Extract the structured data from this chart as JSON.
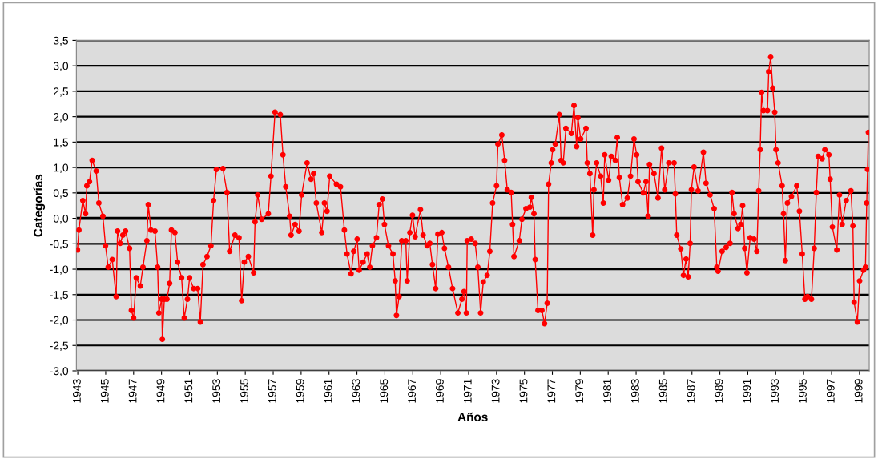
{
  "chart_data": {
    "type": "line",
    "xlabel": "Años",
    "ylabel": "Categorías",
    "xlim": [
      1942.9,
      1999.7
    ],
    "ylim": [
      -3.0,
      3.5
    ],
    "xticks": [
      1943,
      1945,
      1947,
      1949,
      1951,
      1953,
      1955,
      1957,
      1959,
      1961,
      1963,
      1965,
      1967,
      1969,
      1971,
      1973,
      1975,
      1977,
      1979,
      1981,
      1983,
      1985,
      1987,
      1989,
      1991,
      1993,
      1995,
      1997,
      1999
    ],
    "yticks": [
      {
        "value": -3.0,
        "label": "-3,0"
      },
      {
        "value": -2.5,
        "label": "-2,5"
      },
      {
        "value": -2.0,
        "label": "-2,0"
      },
      {
        "value": -1.5,
        "label": "-1,5"
      },
      {
        "value": -1.0,
        "label": "-1,0"
      },
      {
        "value": -0.5,
        "label": "-0,5"
      },
      {
        "value": 0.0,
        "label": "0,0"
      },
      {
        "value": 0.5,
        "label": "0,5"
      },
      {
        "value": 1.0,
        "label": "1,0"
      },
      {
        "value": 1.5,
        "label": "1,5"
      },
      {
        "value": 2.0,
        "label": "2,0"
      },
      {
        "value": 2.5,
        "label": "2,5"
      },
      {
        "value": 3.0,
        "label": "3,0"
      },
      {
        "value": 3.5,
        "label": "3,5"
      }
    ],
    "grid": "y",
    "marker": "circle",
    "line_style": "solid",
    "ref_lines": [
      {
        "axis": "y",
        "value": 0.0,
        "color": "#000000"
      }
    ],
    "series": [
      {
        "color": "#ff0000",
        "x": [
          1942.98,
          1943.08,
          1943.36,
          1943.56,
          1943.65,
          1943.84,
          1944.03,
          1944.32,
          1944.51,
          1944.8,
          1944.99,
          1945.18,
          1945.47,
          1945.75,
          1945.85,
          1946.04,
          1946.23,
          1946.42,
          1946.71,
          1946.84,
          1947.0,
          1947.19,
          1947.48,
          1947.67,
          1947.95,
          1948.05,
          1948.24,
          1948.53,
          1948.72,
          1948.81,
          1949.01,
          1949.06,
          1949.2,
          1949.39,
          1949.58,
          1949.71,
          1949.96,
          1950.15,
          1950.44,
          1950.63,
          1950.86,
          1951.01,
          1951.3,
          1951.59,
          1951.78,
          1951.97,
          1952.26,
          1952.54,
          1952.73,
          1952.93,
          1953.4,
          1953.69,
          1953.88,
          1954.26,
          1954.55,
          1954.74,
          1954.93,
          1955.22,
          1955.6,
          1955.7,
          1955.89,
          1956.18,
          1956.65,
          1956.84,
          1957.13,
          1957.51,
          1957.7,
          1957.9,
          1958.18,
          1958.28,
          1958.57,
          1958.85,
          1959.04,
          1959.43,
          1959.71,
          1959.9,
          1960.09,
          1960.48,
          1960.67,
          1960.86,
          1961.05,
          1961.53,
          1961.82,
          1962.1,
          1962.29,
          1962.58,
          1962.77,
          1963.02,
          1963.16,
          1963.44,
          1963.73,
          1963.92,
          1964.11,
          1964.4,
          1964.59,
          1964.82,
          1964.97,
          1965.26,
          1965.58,
          1965.74,
          1965.83,
          1966.02,
          1966.21,
          1966.5,
          1966.6,
          1966.79,
          1966.98,
          1967.17,
          1967.55,
          1967.74,
          1968.03,
          1968.22,
          1968.41,
          1968.64,
          1968.8,
          1969.08,
          1969.27,
          1969.56,
          1969.85,
          1970.23,
          1970.52,
          1970.67,
          1970.84,
          1970.9,
          1971.19,
          1971.47,
          1971.66,
          1971.86,
          1972.05,
          1972.33,
          1972.52,
          1972.72,
          1973.0,
          1973.1,
          1973.38,
          1973.58,
          1973.77,
          1974.05,
          1974.15,
          1974.25,
          1974.63,
          1974.82,
          1975.11,
          1975.39,
          1975.49,
          1975.68,
          1975.77,
          1975.97,
          1976.25,
          1976.44,
          1976.63,
          1976.73,
          1976.92,
          1977.02,
          1977.21,
          1977.5,
          1977.63,
          1977.78,
          1977.97,
          1978.36,
          1978.55,
          1978.74,
          1978.83,
          1979.03,
          1979.41,
          1979.5,
          1979.69,
          1979.89,
          1979.98,
          1980.17,
          1980.46,
          1980.65,
          1980.75,
          1981.03,
          1981.22,
          1981.51,
          1981.65,
          1981.8,
          1982.03,
          1982.37,
          1982.6,
          1982.85,
          1983.04,
          1983.14,
          1983.52,
          1983.71,
          1983.86,
          1983.96,
          1984.28,
          1984.57,
          1984.82,
          1985.05,
          1985.34,
          1985.72,
          1985.81,
          1985.91,
          1986.2,
          1986.39,
          1986.58,
          1986.73,
          1986.87,
          1986.96,
          1987.15,
          1987.44,
          1987.82,
          1988.01,
          1988.3,
          1988.59,
          1988.78,
          1988.87,
          1989.16,
          1989.45,
          1989.73,
          1989.87,
          1990.02,
          1990.3,
          1990.5,
          1990.63,
          1990.78,
          1990.94,
          1991.17,
          1991.45,
          1991.65,
          1991.78,
          1991.89,
          1991.99,
          1992.12,
          1992.41,
          1992.5,
          1992.64,
          1992.79,
          1992.93,
          1993.02,
          1993.17,
          1993.46,
          1993.56,
          1993.69,
          1993.84,
          1994.13,
          1994.51,
          1994.7,
          1994.9,
          1995.09,
          1995.28,
          1995.56,
          1995.76,
          1995.91,
          1996.04,
          1996.33,
          1996.52,
          1996.81,
          1996.9,
          1997.06,
          1997.38,
          1997.57,
          1997.76,
          1998.05,
          1998.39,
          1998.53,
          1998.62,
          1998.85,
          1999.01,
          1999.29,
          1999.43,
          1999.52,
          1999.58,
          1999.64
        ],
        "values": [
          -0.62,
          -0.23,
          0.35,
          0.09,
          0.64,
          0.72,
          1.14,
          0.93,
          0.3,
          0.04,
          -0.54,
          -0.96,
          -0.81,
          -1.54,
          -0.25,
          -0.49,
          -0.33,
          -0.25,
          -0.59,
          -1.81,
          -1.96,
          -1.17,
          -1.33,
          -0.96,
          -0.44,
          0.27,
          -0.23,
          -0.25,
          -0.96,
          -1.86,
          -1.59,
          -2.38,
          -1.59,
          -1.59,
          -1.28,
          -0.23,
          -0.28,
          -0.86,
          -1.17,
          -1.96,
          -1.59,
          -1.17,
          -1.38,
          -1.38,
          -2.04,
          -0.91,
          -0.75,
          -0.54,
          0.35,
          0.96,
          0.98,
          0.51,
          -0.65,
          -0.33,
          -0.38,
          -1.62,
          -0.86,
          -0.75,
          -1.07,
          -0.07,
          0.46,
          -0.02,
          0.09,
          0.83,
          2.09,
          2.04,
          1.25,
          0.62,
          0.04,
          -0.33,
          -0.12,
          -0.25,
          0.46,
          1.09,
          0.77,
          0.88,
          0.3,
          -0.28,
          0.3,
          0.14,
          0.83,
          0.67,
          0.62,
          -0.23,
          -0.7,
          -1.09,
          -0.65,
          -0.41,
          -1.02,
          -0.86,
          -0.7,
          -0.96,
          -0.54,
          -0.38,
          0.27,
          0.38,
          -0.12,
          -0.54,
          -0.7,
          -1.23,
          -1.91,
          -1.54,
          -0.44,
          -0.44,
          -1.23,
          -0.28,
          0.06,
          -0.36,
          0.17,
          -0.33,
          -0.54,
          -0.49,
          -0.91,
          -1.38,
          -0.31,
          -0.28,
          -0.59,
          -0.96,
          -1.38,
          -1.86,
          -1.59,
          -1.44,
          -1.86,
          -0.44,
          -0.41,
          -0.49,
          -0.96,
          -1.86,
          -1.25,
          -1.12,
          -0.65,
          0.3,
          0.64,
          1.46,
          1.64,
          1.14,
          0.56,
          0.51,
          -0.12,
          -0.75,
          -0.44,
          -0.02,
          0.19,
          0.22,
          0.41,
          0.09,
          -0.81,
          -1.81,
          -1.81,
          -2.07,
          -1.67,
          0.67,
          1.09,
          1.35,
          1.46,
          2.04,
          1.14,
          1.09,
          1.77,
          1.67,
          2.22,
          1.41,
          1.98,
          1.56,
          1.77,
          1.09,
          0.88,
          -0.33,
          0.56,
          1.09,
          0.83,
          0.3,
          1.25,
          0.75,
          1.22,
          1.14,
          1.59,
          0.8,
          0.27,
          0.4,
          0.83,
          1.56,
          1.25,
          0.72,
          0.5,
          0.72,
          0.04,
          1.06,
          0.88,
          0.4,
          1.38,
          0.56,
          1.09,
          1.09,
          0.48,
          -0.33,
          -0.6,
          -1.12,
          -0.8,
          -1.15,
          -0.49,
          0.56,
          1.01,
          0.54,
          1.3,
          0.69,
          0.46,
          0.19,
          -0.96,
          -1.04,
          -0.65,
          -0.57,
          -0.49,
          0.51,
          0.09,
          -0.2,
          -0.12,
          0.25,
          -0.59,
          -1.07,
          -0.38,
          -0.41,
          -0.65,
          0.54,
          1.35,
          2.48,
          2.12,
          2.12,
          2.88,
          3.17,
          2.56,
          2.09,
          1.35,
          1.09,
          0.64,
          0.09,
          -0.83,
          0.3,
          0.43,
          0.64,
          0.14,
          -0.7,
          -1.59,
          -1.54,
          -1.59,
          -0.59,
          0.51,
          1.22,
          1.17,
          1.35,
          1.25,
          0.77,
          -0.17,
          -0.62,
          0.46,
          -0.12,
          0.35,
          0.54,
          -0.15,
          -1.65,
          -2.04,
          -1.23,
          -1.02,
          -0.96,
          0.3,
          0.96,
          1.69
        ]
      }
    ]
  }
}
